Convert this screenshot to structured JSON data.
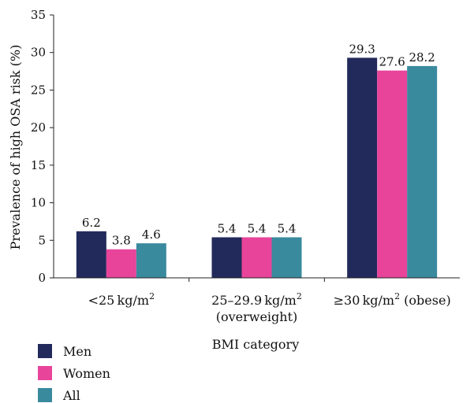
{
  "chart_data": {
    "type": "bar",
    "xlabel": "BMI category",
    "ylabel": "Prevalence of high OSA risk (%)",
    "ylim": [
      0,
      35
    ],
    "yticks": [
      0,
      5,
      10,
      15,
      20,
      25,
      30,
      35
    ],
    "categories": [
      {
        "main": "<25 kg/m",
        "sup": "2",
        "tail": "",
        "line2": ""
      },
      {
        "main": "25–29.9 kg/m",
        "sup": "2",
        "tail": "",
        "line2": "(overweight)"
      },
      {
        "main": "≥30 kg/m",
        "sup": "2",
        "tail": " (obese)",
        "line2": ""
      }
    ],
    "series": [
      {
        "name": "Men",
        "color": "#222a5c",
        "values": [
          6.2,
          5.4,
          29.3
        ],
        "labels": [
          "6.2",
          "5.4",
          "29.3"
        ]
      },
      {
        "name": "Women",
        "color": "#e8449a",
        "values": [
          3.8,
          5.4,
          27.6
        ],
        "labels": [
          "3.8",
          "5.4",
          "27.6"
        ]
      },
      {
        "name": "All",
        "color": "#3a8a9e",
        "values": [
          4.6,
          5.4,
          28.2
        ],
        "labels": [
          "4.6",
          "5.4",
          "28.2"
        ]
      }
    ],
    "grid": false,
    "legend_position": "bottom-left"
  }
}
